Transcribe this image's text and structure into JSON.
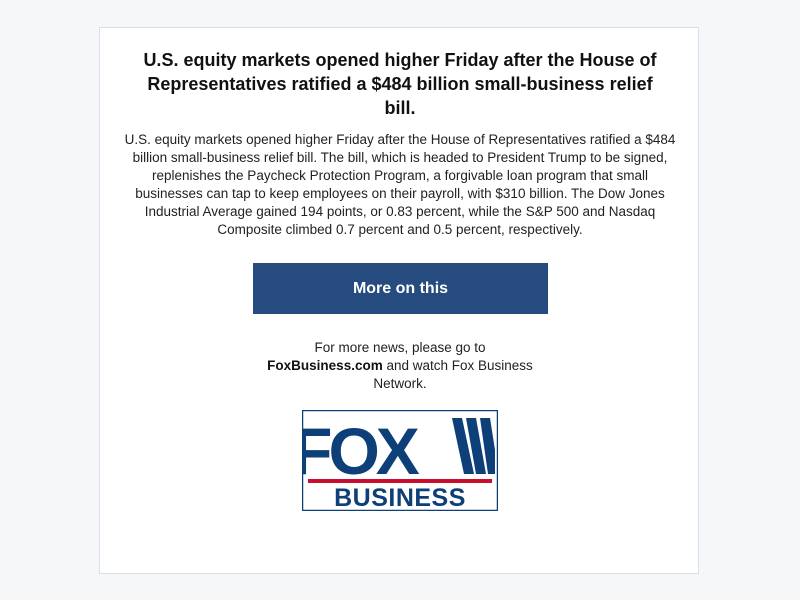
{
  "article": {
    "headline": "U.S. equity markets opened higher Friday after the House of Representatives ratified a $484 billion small-business relief bill.",
    "body": "U.S. equity markets opened higher Friday after the House of Representatives ratified a $484 billion small-business relief bill. The bill, which is headed to President Trump to be signed, replenishes the Paycheck Protection Program, a forgivable loan program that small businesses can tap to keep employees on their payroll, with $310 billion. The Dow Jones Industrial Average gained 194 points, or 0.83 percent, while the S&P 500 and Nasdaq Composite climbed 0.7 percent and 0.5 percent, respectively."
  },
  "cta": {
    "label": "More on this"
  },
  "footer": {
    "prefix": "For more news, please go to",
    "link_text": "FoxBusiness.com",
    "suffix": "and watch Fox Business Network."
  },
  "logo": {
    "top_text": "FOX",
    "bottom_text": "BUSINESS",
    "icon": "fox-business-logo"
  },
  "colors": {
    "page_background": "#f6f7f8",
    "card_border": "#d6e1ea",
    "button_background": "#264b7e",
    "button_text": "#ffffff",
    "logo_blue": "#0d3f78",
    "logo_red": "#c8102e"
  }
}
